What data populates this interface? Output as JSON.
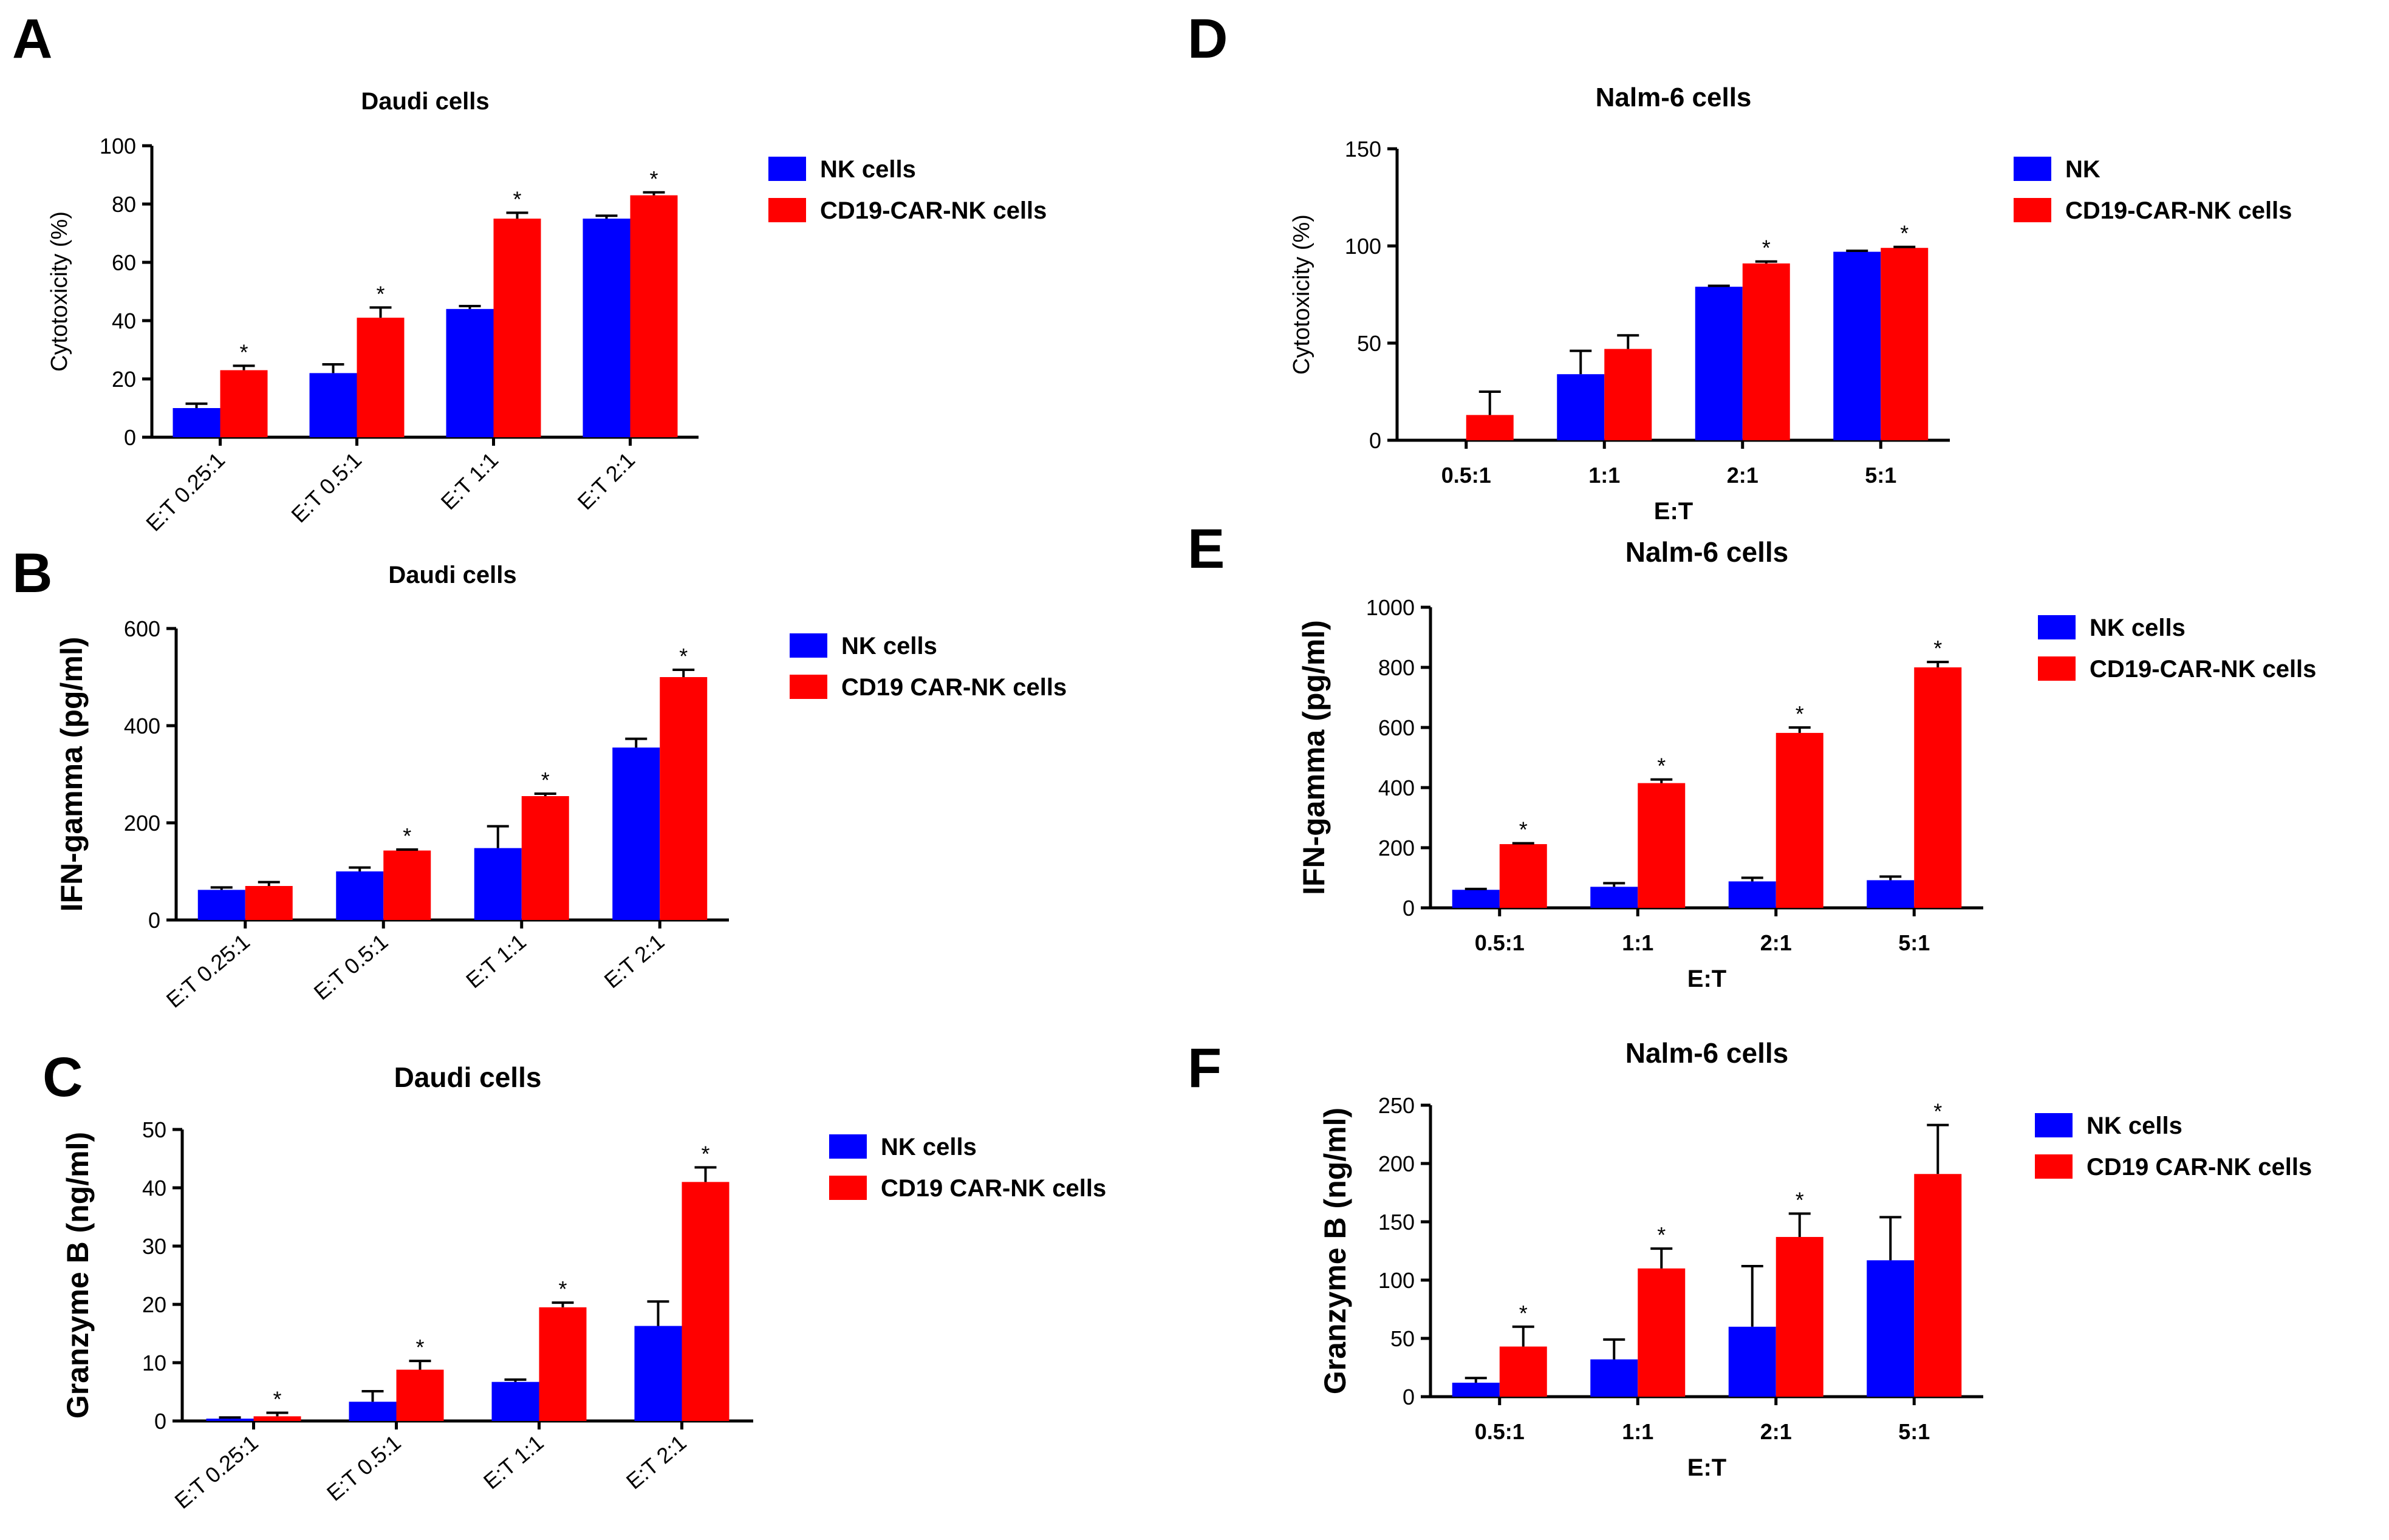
{
  "chart_data": [
    {
      "panel": "A",
      "type": "bar",
      "title": "Daudi cells",
      "xlabel": "",
      "ylabel": "Cytotoxicity (%)",
      "ylim": [
        0,
        100
      ],
      "yticks": [
        0,
        20,
        40,
        60,
        80,
        100
      ],
      "categories": [
        "E:T 0.25:1",
        "E:T 0.5:1",
        "E:T 1:1",
        "E:T 2:1"
      ],
      "rotate_xticks": true,
      "series": [
        {
          "name": "NK cells",
          "color": "#0000ff",
          "values": [
            10,
            22,
            44,
            75
          ],
          "errors": [
            1.5,
            3,
            1,
            1
          ],
          "stars": [
            false,
            false,
            false,
            false
          ]
        },
        {
          "name": "CD19-CAR-NK cells",
          "color": "#ff0000",
          "values": [
            23,
            41,
            75,
            83
          ],
          "errors": [
            1.5,
            3.5,
            2,
            1
          ],
          "stars": [
            true,
            true,
            true,
            true
          ]
        }
      ],
      "star_symbol": "*",
      "legend": "right"
    },
    {
      "panel": "B",
      "type": "bar",
      "title": "Daudi cells",
      "xlabel": "",
      "ylabel": "IFN-gamma (pg/ml)",
      "ylim": [
        0,
        600
      ],
      "yticks": [
        0,
        200,
        400,
        600
      ],
      "categories": [
        "E:T 0.25:1",
        "E:T 0.5:1",
        "E:T 1:1",
        "E:T 2:1"
      ],
      "rotate_xticks": true,
      "series": [
        {
          "name": "NK cells",
          "color": "#0000ff",
          "values": [
            62,
            100,
            148,
            355
          ],
          "errors": [
            5,
            8,
            45,
            18
          ],
          "stars": [
            false,
            false,
            false,
            false
          ]
        },
        {
          "name": "CD19 CAR-NK cells",
          "color": "#ff0000",
          "values": [
            70,
            143,
            255,
            500
          ],
          "errors": [
            8,
            2,
            5,
            15
          ],
          "stars": [
            false,
            true,
            true,
            true
          ]
        }
      ],
      "star_symbol": "*",
      "legend": "right"
    },
    {
      "panel": "C",
      "type": "bar",
      "title": "Daudi cells",
      "xlabel": "",
      "ylabel": "Granzyme B (ng/ml)",
      "ylim": [
        0,
        50
      ],
      "yticks": [
        0,
        10,
        20,
        30,
        40,
        50
      ],
      "categories": [
        "E:T 0.25:1",
        "E:T 0.5:1",
        "E:T 1:1",
        "E:T 2:1"
      ],
      "rotate_xticks": true,
      "series": [
        {
          "name": "NK cells",
          "color": "#0000ff",
          "values": [
            0.4,
            3.3,
            6.7,
            16.3
          ],
          "errors": [
            0.2,
            1.8,
            0.4,
            4.2
          ],
          "stars": [
            false,
            false,
            false,
            false
          ]
        },
        {
          "name": "CD19 CAR-NK cells",
          "color": "#ff0000",
          "values": [
            0.8,
            8.8,
            19.5,
            41
          ],
          "errors": [
            0.6,
            1.5,
            0.8,
            2.5
          ],
          "stars": [
            true,
            true,
            true,
            true
          ]
        }
      ],
      "star_symbol": "*",
      "legend": "right"
    },
    {
      "panel": "D",
      "type": "bar",
      "title": "Nalm-6 cells",
      "xlabel": "E:T",
      "ylabel": "Cytotoxicity (%)",
      "ylim": [
        0,
        150
      ],
      "yticks": [
        0,
        50,
        100,
        150
      ],
      "categories": [
        "0.5:1",
        "1:1",
        "2:1",
        "5:1"
      ],
      "rotate_xticks": false,
      "series": [
        {
          "name": "NK",
          "color": "#0000ff",
          "values": [
            0,
            34,
            79,
            97
          ],
          "errors": [
            0,
            12,
            0.5,
            0.5
          ],
          "stars": [
            false,
            false,
            false,
            false
          ]
        },
        {
          "name": "CD19-CAR-NK cells",
          "color": "#ff0000",
          "values": [
            13,
            47,
            91,
            99
          ],
          "errors": [
            12,
            7,
            1,
            0.5
          ],
          "stars": [
            false,
            false,
            true,
            true
          ]
        }
      ],
      "star_symbol": "*",
      "legend": "right"
    },
    {
      "panel": "E",
      "type": "bar",
      "title": "Nalm-6 cells",
      "xlabel": "E:T",
      "ylabel": "IFN-gamma (pg/ml)",
      "ylim": [
        0,
        1000
      ],
      "yticks": [
        0,
        200,
        400,
        600,
        800,
        1000
      ],
      "categories": [
        "0.5:1",
        "1:1",
        "2:1",
        "5:1"
      ],
      "rotate_xticks": false,
      "series": [
        {
          "name": "NK cells",
          "color": "#0000ff",
          "values": [
            60,
            70,
            88,
            92
          ],
          "errors": [
            3,
            12,
            12,
            12
          ],
          "stars": [
            false,
            false,
            false,
            false
          ]
        },
        {
          "name": "CD19-CAR-NK cells",
          "color": "#ff0000",
          "values": [
            212,
            415,
            582,
            800
          ],
          "errors": [
            3,
            12,
            18,
            18
          ],
          "stars": [
            true,
            true,
            true,
            true
          ]
        }
      ],
      "star_symbol": "*",
      "legend": "right"
    },
    {
      "panel": "F",
      "type": "bar",
      "title": "Nalm-6 cells",
      "xlabel": "E:T",
      "ylabel": "Granzyme B (ng/ml)",
      "ylim": [
        0,
        250
      ],
      "yticks": [
        0,
        50,
        100,
        150,
        200,
        250
      ],
      "categories": [
        "0.5:1",
        "1:1",
        "2:1",
        "5:1"
      ],
      "rotate_xticks": false,
      "series": [
        {
          "name": "NK cells",
          "color": "#0000ff",
          "values": [
            12,
            32,
            60,
            117
          ],
          "errors": [
            4,
            17,
            52,
            37
          ],
          "stars": [
            false,
            false,
            false,
            false
          ]
        },
        {
          "name": "CD19 CAR-NK cells",
          "color": "#ff0000",
          "values": [
            43,
            110,
            137,
            191
          ],
          "errors": [
            17,
            17,
            20,
            42
          ],
          "stars": [
            true,
            true,
            true,
            true
          ]
        }
      ],
      "star_symbol": "*",
      "legend": "right"
    }
  ]
}
